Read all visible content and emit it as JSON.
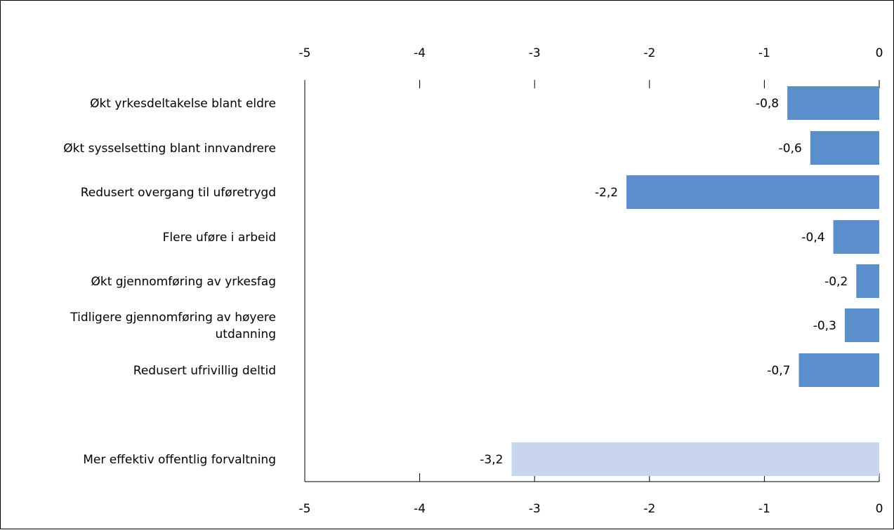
{
  "chart_data": {
    "type": "bar",
    "orientation": "horizontal",
    "title": "",
    "xlabel": "",
    "ylabel": "",
    "xlim": [
      -5,
      0
    ],
    "x_ticks": [
      "-5",
      "-4",
      "-3",
      "-2",
      "-1",
      "0"
    ],
    "grid": false,
    "legend": "none",
    "categories": [
      [
        "Økt yrkesdeltakelse blant eldre"
      ],
      [
        "Økt sysselsetting blant innvandrere"
      ],
      [
        "Redusert overgang til uføretrygd"
      ],
      [
        "Flere uføre i arbeid"
      ],
      [
        "Økt gjennomføring av yrkesfag"
      ],
      [
        "Tidligere gjennomføring av høyere",
        "utdanning"
      ],
      [
        "Redusert ufrivillig deltid"
      ],
      [
        "Mer effektiv offentlig forvaltning"
      ]
    ],
    "values": [
      -0.8,
      -0.6,
      -2.2,
      -0.4,
      -0.2,
      -0.3,
      -0.7,
      -3.2
    ],
    "value_labels": [
      "-0,8",
      "-0,6",
      "-2,2",
      "-0,4",
      "-0,2",
      "-0,3",
      "-0,7",
      "-3,2"
    ],
    "bar_colors": [
      "#5b8fcc",
      "#5b8fcc",
      "#5b8fcc",
      "#5b8fcc",
      "#5b8fcc",
      "#5b8fcc",
      "#5b8fcc",
      "#c8d5ec"
    ]
  }
}
